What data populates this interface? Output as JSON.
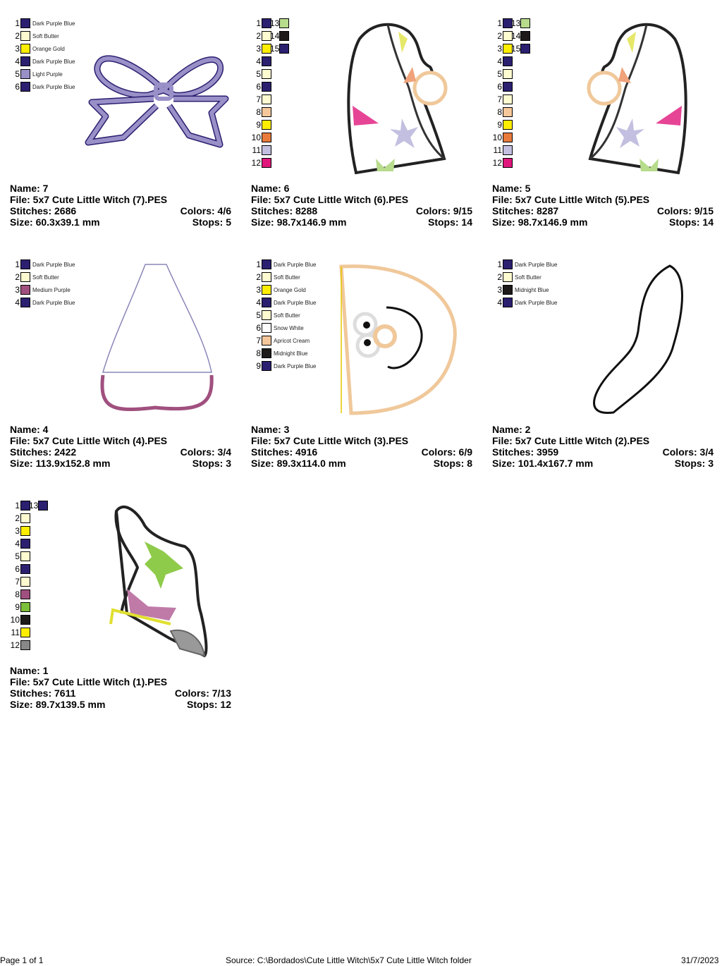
{
  "colors": {
    "dark_purple_blue": "#2b1f70",
    "soft_butter": "#fffbd0",
    "orange_gold": "#ffee00",
    "light_purple": "#9a90c8",
    "medium_purple": "#a0507f",
    "apricot_cream": "#f6c79a",
    "midnight_blue": "#1e1a1a",
    "snow_white": "#ffffff",
    "light_green": "#b7dc8c",
    "orange": "#e87a3c",
    "lavender": "#c2bfe0",
    "magenta": "#e0167c",
    "green": "#7cbf3a",
    "gray": "#888888"
  },
  "cards": [
    {
      "name_label": "Name: 7",
      "file_label": "File: 5x7 Cute Little Witch (7).PES",
      "stitches_label": "Stitches: 2686",
      "colors_label": "Colors: 4/6",
      "size_label": "Size: 60.3x39.1 mm",
      "stops_label": "Stops: 5",
      "palette": [
        [
          "1",
          "#2b1f70",
          "Dark Purple Blue"
        ],
        [
          "2",
          "#fffbd0",
          "Soft Butter"
        ],
        [
          "3",
          "#ffee00",
          "Orange Gold"
        ],
        [
          "4",
          "#2b1f70",
          "Dark Purple Blue"
        ],
        [
          "5",
          "#9a90c8",
          "Light Purple"
        ],
        [
          "6",
          "#2b1f70",
          "Dark Purple Blue"
        ]
      ]
    },
    {
      "name_label": "Name: 6",
      "file_label": "File: 5x7 Cute Little Witch (6).PES",
      "stitches_label": "Stitches: 8288",
      "colors_label": "Colors: 9/15",
      "size_label": "Size: 98.7x146.9 mm",
      "stops_label": "Stops: 14",
      "palette": [
        [
          "1",
          "#2b1f70",
          ""
        ],
        [
          "2",
          "#fffbd0",
          ""
        ],
        [
          "3",
          "#ffee00",
          ""
        ],
        [
          "4",
          "#2b1f70",
          ""
        ],
        [
          "5",
          "#fffbd0",
          ""
        ],
        [
          "6",
          "#2b1f70",
          ""
        ],
        [
          "7",
          "#fffbd0",
          ""
        ],
        [
          "8",
          "#f6c79a",
          ""
        ],
        [
          "9",
          "#ffee00",
          ""
        ],
        [
          "10",
          "#e87a3c",
          ""
        ],
        [
          "11",
          "#c2bfe0",
          ""
        ],
        [
          "12",
          "#e0167c",
          ""
        ],
        [
          "13",
          "#b7dc8c",
          ""
        ],
        [
          "14",
          "#1e1a1a",
          ""
        ],
        [
          "15",
          "#2b1f70",
          ""
        ]
      ]
    },
    {
      "name_label": "Name: 5",
      "file_label": "File: 5x7 Cute Little Witch (5).PES",
      "stitches_label": "Stitches: 8287",
      "colors_label": "Colors: 9/15",
      "size_label": "Size: 98.7x146.9 mm",
      "stops_label": "Stops: 14",
      "palette": [
        [
          "1",
          "#2b1f70",
          ""
        ],
        [
          "2",
          "#fffbd0",
          ""
        ],
        [
          "3",
          "#ffee00",
          ""
        ],
        [
          "4",
          "#2b1f70",
          ""
        ],
        [
          "5",
          "#fffbd0",
          ""
        ],
        [
          "6",
          "#2b1f70",
          ""
        ],
        [
          "7",
          "#fffbd0",
          ""
        ],
        [
          "8",
          "#f6c79a",
          ""
        ],
        [
          "9",
          "#ffee00",
          ""
        ],
        [
          "10",
          "#e87a3c",
          ""
        ],
        [
          "11",
          "#c2bfe0",
          ""
        ],
        [
          "12",
          "#e0167c",
          ""
        ],
        [
          "13",
          "#b7dc8c",
          ""
        ],
        [
          "14",
          "#1e1a1a",
          ""
        ],
        [
          "15",
          "#2b1f70",
          ""
        ]
      ]
    },
    {
      "name_label": "Name: 4",
      "file_label": "File: 5x7 Cute Little Witch (4).PES",
      "stitches_label": "Stitches: 2422",
      "colors_label": "Colors: 3/4",
      "size_label": "Size: 113.9x152.8 mm",
      "stops_label": "Stops: 3",
      "palette": [
        [
          "1",
          "#2b1f70",
          "Dark Purple Blue"
        ],
        [
          "2",
          "#fffbd0",
          "Soft Butter"
        ],
        [
          "3",
          "#a0507f",
          "Medium Purple"
        ],
        [
          "4",
          "#2b1f70",
          "Dark Purple Blue"
        ]
      ]
    },
    {
      "name_label": "Name: 3",
      "file_label": "File: 5x7 Cute Little Witch (3).PES",
      "stitches_label": "Stitches: 4916",
      "colors_label": "Colors: 6/9",
      "size_label": "Size: 89.3x114.0 mm",
      "stops_label": "Stops: 8",
      "palette": [
        [
          "1",
          "#2b1f70",
          "Dark Purple Blue"
        ],
        [
          "2",
          "#fffbd0",
          "Soft Butter"
        ],
        [
          "3",
          "#ffee00",
          "Orange Gold"
        ],
        [
          "4",
          "#2b1f70",
          "Dark Purple Blue"
        ],
        [
          "5",
          "#fffbd0",
          "Soft Butter"
        ],
        [
          "6",
          "#ffffff",
          "Snow White"
        ],
        [
          "7",
          "#f6c79a",
          "Apricot Cream"
        ],
        [
          "8",
          "#1e1a1a",
          "Midnight Blue"
        ],
        [
          "9",
          "#2b1f70",
          "Dark Purple Blue"
        ]
      ]
    },
    {
      "name_label": "Name: 2",
      "file_label": "File: 5x7 Cute Little Witch (2).PES",
      "stitches_label": "Stitches: 3959",
      "colors_label": "Colors: 3/4",
      "size_label": "Size: 101.4x167.7 mm",
      "stops_label": "Stops: 3",
      "palette": [
        [
          "1",
          "#2b1f70",
          "Dark Purple Blue"
        ],
        [
          "2",
          "#fffbd0",
          "Soft Butter"
        ],
        [
          "3",
          "#1e1a1a",
          "Midnight Blue"
        ],
        [
          "4",
          "#2b1f70",
          "Dark Purple Blue"
        ]
      ]
    },
    {
      "name_label": "Name: 1",
      "file_label": "File: 5x7 Cute Little Witch (1).PES",
      "stitches_label": "Stitches: 7611",
      "colors_label": "Colors: 7/13",
      "size_label": "Size: 89.7x139.5 mm",
      "stops_label": "Stops: 12",
      "palette": [
        [
          "1",
          "#2b1f70",
          ""
        ],
        [
          "2",
          "#fffbd0",
          ""
        ],
        [
          "3",
          "#ffee00",
          ""
        ],
        [
          "4",
          "#2b1f70",
          ""
        ],
        [
          "5",
          "#fffbd0",
          ""
        ],
        [
          "6",
          "#2b1f70",
          ""
        ],
        [
          "7",
          "#fffbd0",
          ""
        ],
        [
          "8",
          "#a0507f",
          ""
        ],
        [
          "9",
          "#7cbf3a",
          ""
        ],
        [
          "10",
          "#1e1a1a",
          ""
        ],
        [
          "11",
          "#ffee00",
          ""
        ],
        [
          "12",
          "#888888",
          ""
        ],
        [
          "13",
          "#2b1f70",
          ""
        ]
      ]
    }
  ],
  "footer": {
    "page": "Page 1 of 1",
    "source": "Source: C:\\Bordados\\Cute Little Witch\\5x7 Cute Little Witch folder",
    "date": "31/7/2023"
  }
}
